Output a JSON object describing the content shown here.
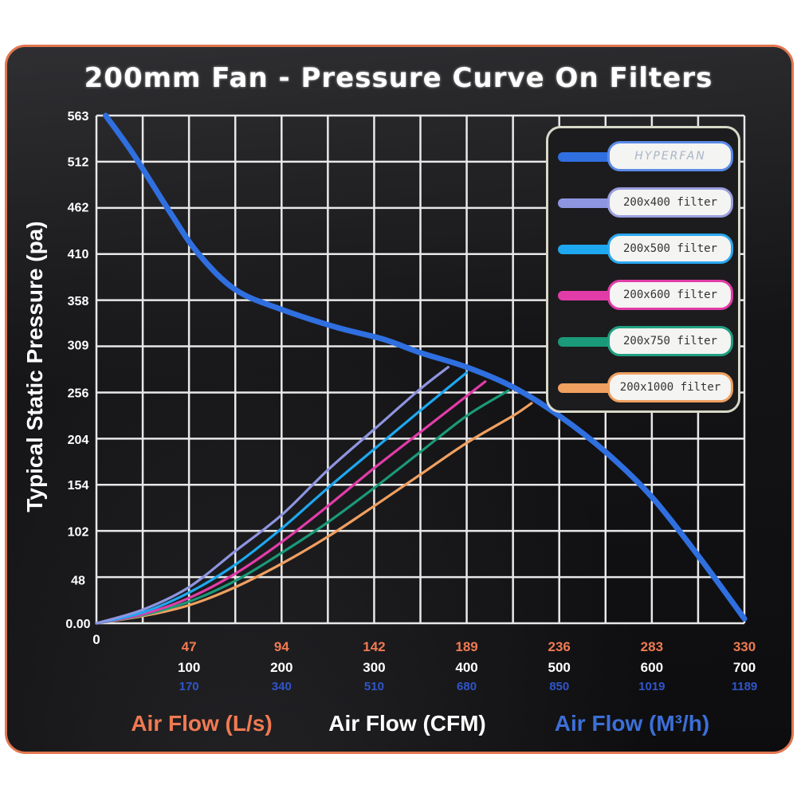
{
  "title": "200mm Fan - Pressure Curve On Filters",
  "chart_data": {
    "type": "line",
    "ylabel": "Typical Static Pressure  (pa)",
    "y_ticks": [
      "563",
      "512",
      "462",
      "410",
      "358",
      "309",
      "256",
      "204",
      "154",
      "102",
      "48",
      "0.00"
    ],
    "y_tick_values": [
      563,
      512,
      462,
      410,
      358,
      309,
      256,
      204,
      154,
      102,
      48,
      0
    ],
    "ylim": [
      0,
      563
    ],
    "xlim": [
      0,
      700
    ],
    "x_label_ls": "Air Flow (L/s)",
    "x_label_cfm": "Air Flow (CFM)",
    "x_label_m3h": "Air Flow (M³/h)",
    "x_origin_label": "0",
    "x_ticks_cfm_values": [
      100,
      200,
      300,
      400,
      500,
      600,
      700
    ],
    "x_ticks_ls": [
      "47",
      "94",
      "142",
      "189",
      "236",
      "283",
      "330"
    ],
    "x_ticks_cfm": [
      "100",
      "200",
      "300",
      "400",
      "500",
      "600",
      "700"
    ],
    "x_ticks_m3h": [
      "170",
      "340",
      "510",
      "680",
      "850",
      "1019",
      "1189"
    ],
    "grid": true,
    "legend_position": "top-right",
    "series": [
      {
        "name": "HYPERFAN",
        "color": "#2f6fe0",
        "x": [
          10,
          40,
          80,
          110,
          150,
          200,
          260,
          310,
          350,
          400,
          450,
          500,
          550,
          600,
          650,
          700
        ],
        "y": [
          563,
          520,
          455,
          410,
          370,
          348,
          328,
          315,
          300,
          284,
          262,
          230,
          190,
          140,
          75,
          5
        ]
      },
      {
        "name": "200x400 filter",
        "color": "#8e95e0",
        "x": [
          0,
          50,
          100,
          150,
          200,
          250,
          300,
          350,
          380
        ],
        "y": [
          0,
          15,
          40,
          80,
          120,
          170,
          215,
          260,
          284
        ]
      },
      {
        "name": "200x500 filter",
        "color": "#1ea8f0",
        "x": [
          0,
          50,
          100,
          150,
          200,
          250,
          300,
          350,
          400
        ],
        "y": [
          0,
          12,
          34,
          65,
          105,
          150,
          193,
          236,
          278
        ]
      },
      {
        "name": "200x600 filter",
        "color": "#e23ca8",
        "x": [
          0,
          50,
          100,
          150,
          200,
          250,
          300,
          350,
          400,
          420
        ],
        "y": [
          0,
          10,
          28,
          55,
          90,
          130,
          172,
          212,
          252,
          268
        ]
      },
      {
        "name": "200x750 filter",
        "color": "#1a9a78",
        "x": [
          0,
          50,
          100,
          150,
          200,
          250,
          300,
          350,
          400,
          445
        ],
        "y": [
          0,
          9,
          24,
          47,
          78,
          112,
          150,
          190,
          230,
          258
        ]
      },
      {
        "name": "200x1000 filter",
        "color": "#f0a060",
        "x": [
          0,
          50,
          100,
          150,
          200,
          250,
          300,
          350,
          400,
          450,
          470
        ],
        "y": [
          0,
          8,
          20,
          40,
          66,
          96,
          130,
          165,
          200,
          230,
          244
        ]
      }
    ]
  }
}
